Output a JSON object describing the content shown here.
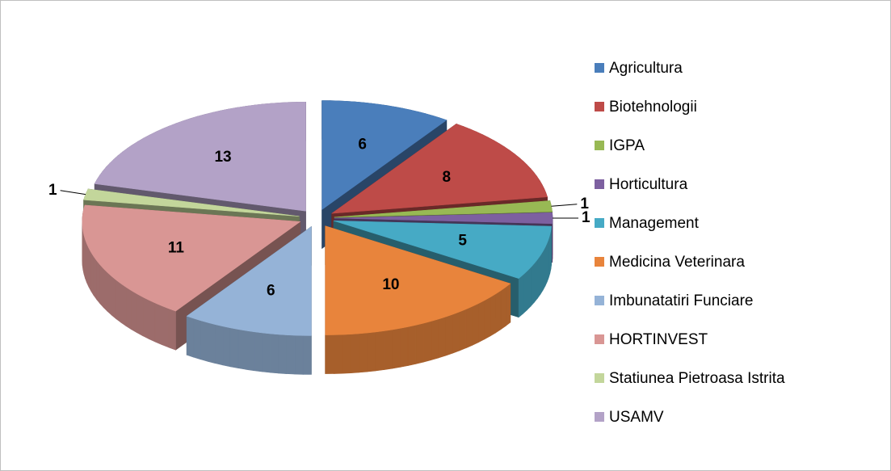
{
  "chart_data": {
    "type": "pie",
    "categories": [
      "Agricultura",
      "Biotehnologii",
      "IGPA",
      "Horticultura",
      "Management",
      "Medicina Veterinara",
      "Imbunatatiri Funciare",
      "HORTINVEST",
      "Statiunea Pietroasa Istrita",
      "USAMV"
    ],
    "values": [
      6,
      8,
      1,
      1,
      5,
      10,
      6,
      11,
      1,
      13
    ],
    "colors": [
      "#4a7ebb",
      "#be4b48",
      "#98b954",
      "#7d60a0",
      "#46aac5",
      "#e8843c",
      "#95b3d7",
      "#d99694",
      "#c3d69b",
      "#b3a2c7"
    ]
  }
}
